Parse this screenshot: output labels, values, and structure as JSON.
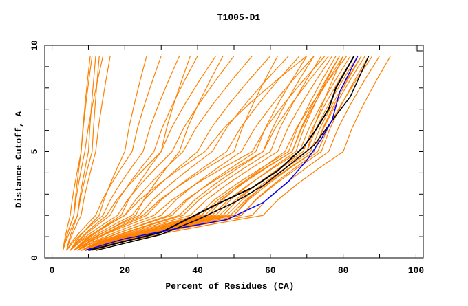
{
  "chart_data": {
    "type": "line",
    "title": "T1005-D1",
    "xlabel": "Percent of Residues (CA)",
    "ylabel": "Distance Cutoff, A",
    "xlim": [
      -2,
      102
    ],
    "ylim": [
      0,
      10
    ],
    "x_ticks": [
      0,
      20,
      40,
      60,
      80,
      100
    ],
    "y_ticks": [
      0,
      5,
      10
    ],
    "grid": false,
    "curve_y_levels": [
      0.35,
      2,
      5,
      9.5
    ],
    "colors": {
      "models": "#ff8000",
      "highlight_black": "#000000",
      "highlight_blue": "#0000ff"
    },
    "model_curves_x": [
      [
        3,
        6,
        8,
        11
      ],
      [
        3,
        5,
        8,
        10.5
      ],
      [
        4,
        7,
        10,
        12
      ],
      [
        3,
        6,
        9,
        14
      ],
      [
        4,
        8,
        12,
        16
      ],
      [
        3,
        7,
        11,
        13
      ],
      [
        4,
        12,
        22,
        30
      ],
      [
        4,
        14,
        25,
        35
      ],
      [
        5,
        16,
        28,
        40
      ],
      [
        5,
        15,
        30,
        45
      ],
      [
        5,
        18,
        33,
        50
      ],
      [
        6,
        20,
        36,
        55
      ],
      [
        6,
        22,
        40,
        60
      ],
      [
        6,
        24,
        44,
        65
      ],
      [
        7,
        26,
        48,
        68
      ],
      [
        5,
        20,
        42,
        70
      ],
      [
        7,
        30,
        52,
        72
      ],
      [
        6,
        28,
        55,
        75
      ],
      [
        8,
        32,
        58,
        76
      ],
      [
        7,
        25,
        50,
        62
      ],
      [
        5,
        13,
        20,
        26
      ],
      [
        6,
        19,
        30,
        38
      ],
      [
        7,
        23,
        35,
        47
      ],
      [
        8,
        40,
        65,
        78
      ],
      [
        8,
        42,
        66,
        80
      ],
      [
        9,
        44,
        68,
        82
      ],
      [
        9,
        46,
        70,
        84
      ],
      [
        8,
        45,
        67,
        79
      ],
      [
        9,
        48,
        71,
        85
      ],
      [
        10,
        50,
        72,
        86
      ],
      [
        8,
        38,
        62,
        77
      ],
      [
        9,
        43,
        64,
        81
      ],
      [
        10,
        47,
        69,
        83
      ],
      [
        9,
        50,
        70,
        80
      ],
      [
        10,
        52,
        73,
        88
      ],
      [
        10,
        55,
        76,
        90
      ],
      [
        11,
        58,
        80,
        93
      ],
      [
        9,
        52,
        74,
        87
      ],
      [
        8,
        36,
        60,
        74
      ],
      [
        9,
        41,
        66,
        79
      ],
      [
        10,
        49,
        72,
        85
      ],
      [
        8,
        35,
        58,
        72
      ],
      [
        7,
        33,
        56,
        70
      ]
    ],
    "highlight_series": [
      {
        "name": "black-1",
        "color": "#000000",
        "points": [
          [
            10,
            0.35
          ],
          [
            30,
            1.2
          ],
          [
            45,
            2.5
          ],
          [
            55,
            3.3
          ],
          [
            62,
            4.1
          ],
          [
            69,
            5.2
          ],
          [
            72,
            5.9
          ],
          [
            76,
            7
          ],
          [
            78,
            8
          ],
          [
            83,
            9.5
          ]
        ]
      },
      {
        "name": "black-2",
        "color": "#000000",
        "points": [
          [
            12,
            0.35
          ],
          [
            30,
            1.1
          ],
          [
            40,
            1.8
          ],
          [
            50,
            2.6
          ],
          [
            58,
            3.4
          ],
          [
            64,
            4.2
          ],
          [
            72,
            5.3
          ],
          [
            78,
            6.7
          ],
          [
            82,
            7.6
          ],
          [
            87,
            9.5
          ]
        ]
      },
      {
        "name": "blue",
        "color": "#0000ff",
        "points": [
          [
            9,
            0.35
          ],
          [
            20,
            0.9
          ],
          [
            35,
            1.4
          ],
          [
            48,
            1.8
          ],
          [
            58,
            2.6
          ],
          [
            65,
            3.6
          ],
          [
            70,
            4.6
          ],
          [
            74,
            5.6
          ],
          [
            77,
            6.5
          ],
          [
            79,
            7.8
          ],
          [
            84,
            9.5
          ]
        ]
      }
    ]
  }
}
